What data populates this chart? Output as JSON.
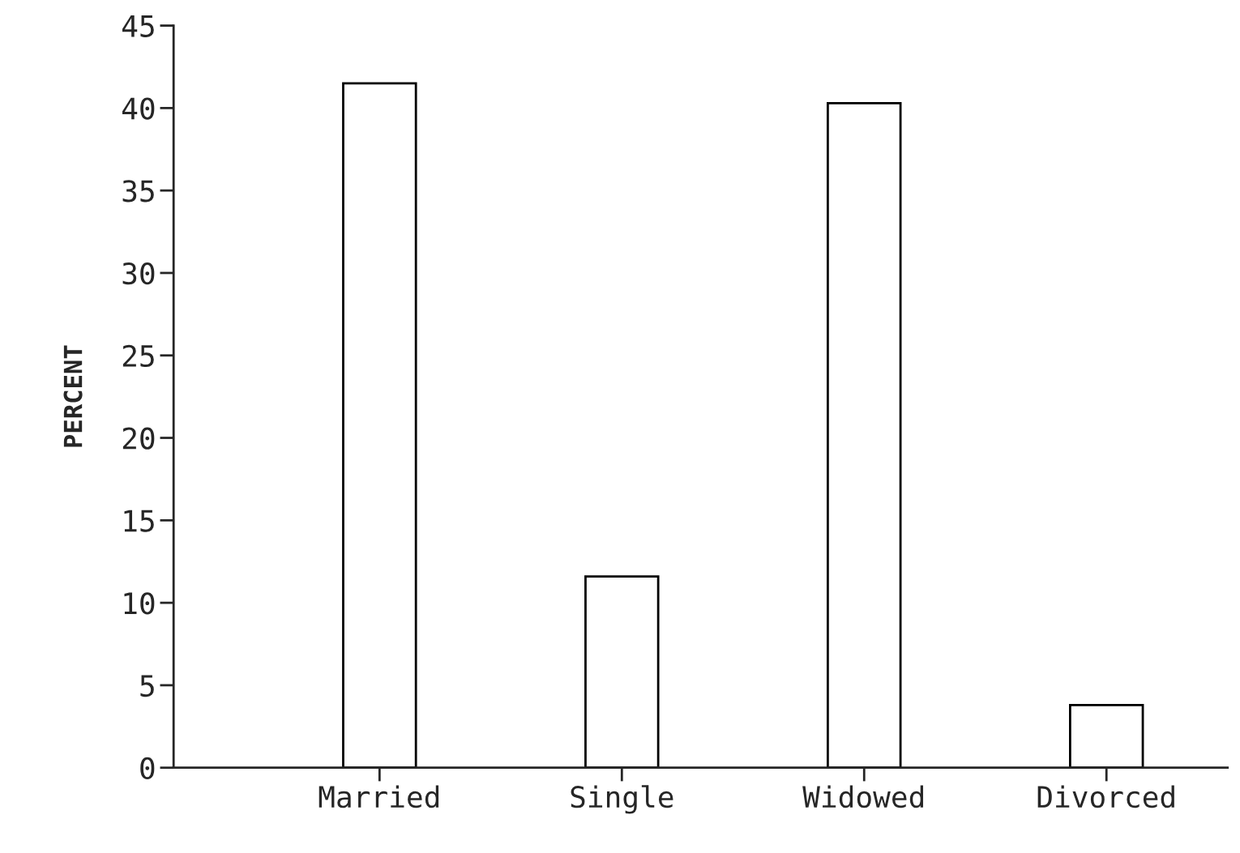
{
  "chart_data": {
    "type": "bar",
    "ylabel": "PERCENT",
    "categories": [
      "Married",
      "Single",
      "Widowed",
      "Divorced"
    ],
    "values": [
      41.5,
      11.6,
      40.3,
      3.8
    ],
    "color": "#ffffff",
    "ylim": [
      0,
      45
    ],
    "yticks": [
      0,
      5,
      10,
      15,
      20,
      25,
      30,
      35,
      40,
      45
    ],
    "grid": false
  }
}
